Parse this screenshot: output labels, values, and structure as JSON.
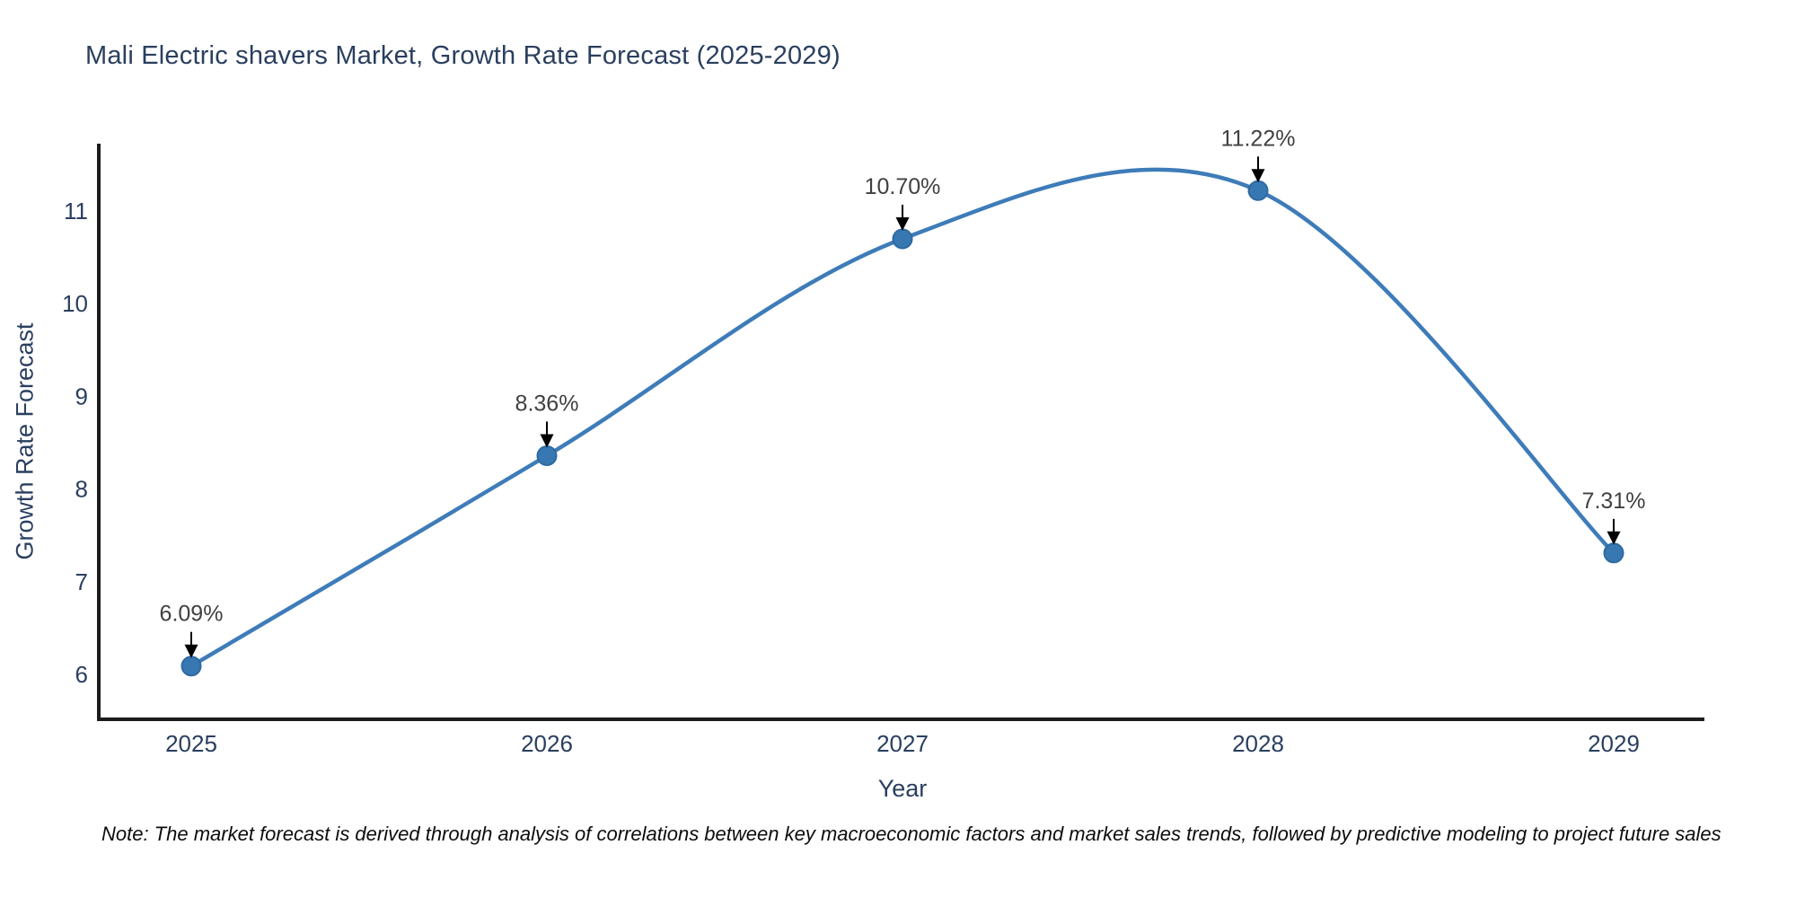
{
  "title": "Mali Electric shavers Market, Growth Rate Forecast (2025-2029)",
  "note": "Note: The market forecast is derived through analysis of correlations between key macroeconomic factors and market sales trends, followed by predictive modeling to project future sales",
  "colors": {
    "title_text": "#2a3f5f",
    "tick_text": "#2a3f5f",
    "axis_title_text": "#2a3f5f",
    "axis_line": "#1c1c1c",
    "line": "#3e7cb9",
    "marker_fill": "#3778b3",
    "marker_edge": "#2d6aa0",
    "annotation_text": "#404040",
    "arrow": "#000000",
    "note_text": "#0d0d0d",
    "background": "#ffffff"
  },
  "chart_data": {
    "type": "line",
    "title": "Mali Electric shavers Market, Growth Rate Forecast (2025-2029)",
    "x": [
      "2025",
      "2026",
      "2027",
      "2028",
      "2029"
    ],
    "values": [
      6.09,
      8.36,
      10.7,
      11.22,
      7.31
    ],
    "point_labels": [
      "6.09%",
      "8.36%",
      "10.70%",
      "11.22%",
      "7.31%"
    ],
    "xlabel": "Year",
    "ylabel": "Growth Rate Forecast",
    "yticks": [
      6,
      7,
      8,
      9,
      10,
      11
    ],
    "ylim": [
      5.52,
      11.83
    ],
    "line_shape": "spline",
    "grid": false,
    "legend": "none",
    "annotations_have_arrows": true
  }
}
